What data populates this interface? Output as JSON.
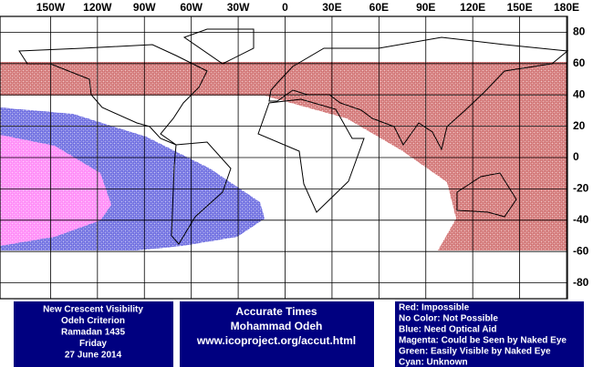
{
  "map": {
    "lon_ticks": [
      {
        "value": -150,
        "label": "150W"
      },
      {
        "value": -120,
        "label": "120W"
      },
      {
        "value": -90,
        "label": "90W"
      },
      {
        "value": -60,
        "label": "60W"
      },
      {
        "value": -30,
        "label": "30W"
      },
      0,
      {
        "value": 30,
        "label": "30E"
      },
      {
        "value": 60,
        "label": "60E"
      },
      {
        "value": 90,
        "label": "90E"
      },
      {
        "value": 120,
        "label": "120E"
      },
      {
        "value": 150,
        "label": "150E"
      },
      {
        "value": 180,
        "label": "180E"
      }
    ],
    "lat_ticks": [
      80,
      60,
      40,
      20,
      0,
      -20,
      -40,
      -60,
      -80
    ],
    "info_left": [
      "New Crescent Visibility",
      "Odeh Criterion",
      "Ramadan 1435",
      "Friday",
      "27 June 2014"
    ],
    "info_center": [
      "Accurate Times",
      "Mohammad Odeh",
      "www.icoproject.org/accut.html"
    ],
    "legend": [
      "Red: Impossible",
      "No Color: Not Possible",
      "Blue: Need Optical Aid",
      "Magenta: Could be Seen by Naked Eye",
      "Green: Easily Visible by Naked Eye",
      "Cyan: Unknown"
    ]
  }
}
